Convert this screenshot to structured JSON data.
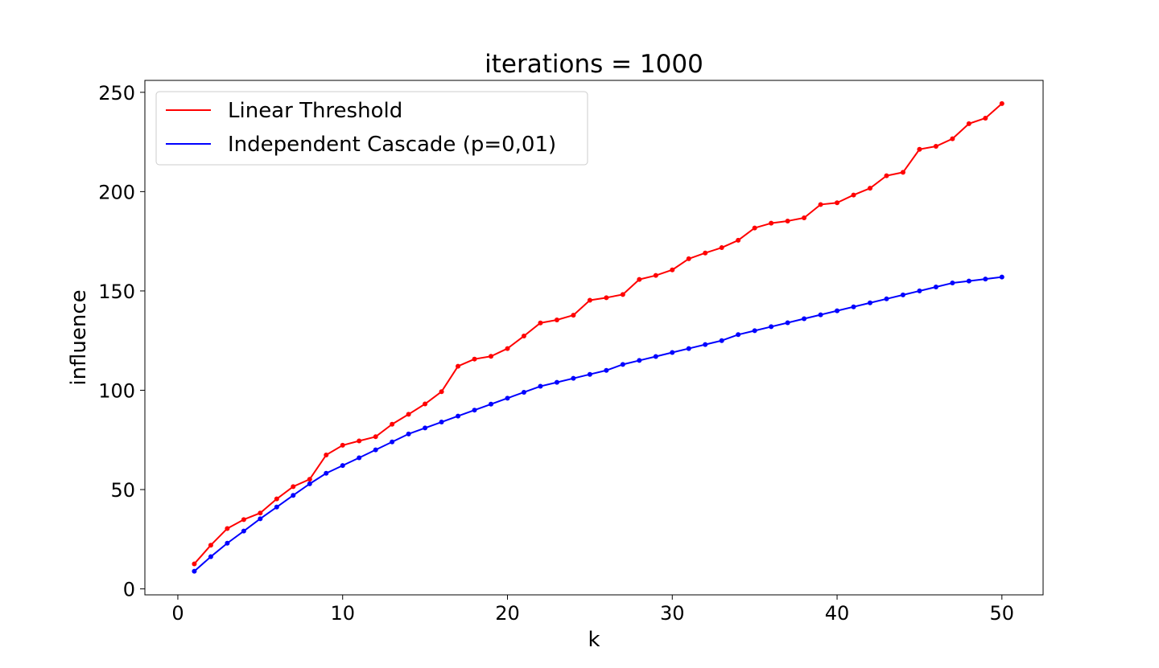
{
  "chart_data": {
    "type": "line",
    "title": "iterations = 1000",
    "xlabel": "k",
    "ylabel": "influence",
    "xlim": [
      -2,
      52.5
    ],
    "ylim": [
      -3,
      256
    ],
    "xticks": [
      0,
      10,
      20,
      30,
      40,
      50
    ],
    "yticks": [
      0,
      50,
      100,
      150,
      200,
      250
    ],
    "grid": false,
    "legend_position": "top-left",
    "x": [
      1,
      2,
      3,
      4,
      5,
      6,
      7,
      8,
      9,
      10,
      11,
      12,
      13,
      14,
      15,
      16,
      17,
      18,
      19,
      20,
      21,
      22,
      23,
      24,
      25,
      26,
      27,
      28,
      29,
      30,
      31,
      32,
      33,
      34,
      35,
      36,
      37,
      38,
      39,
      40,
      41,
      42,
      43,
      44,
      45,
      46,
      47,
      48,
      49,
      50
    ],
    "series": [
      {
        "name": "Linear Threshold",
        "color": "#ff0000",
        "values": [
          12.6,
          22,
          30.4,
          34.9,
          38.2,
          45.3,
          51.5,
          55.2,
          67.4,
          72.3,
          74.5,
          76.6,
          82.9,
          87.9,
          93.1,
          99.3,
          112.1,
          115.7,
          117.1,
          121,
          127.3,
          133.9,
          135.4,
          137.8,
          145.3,
          146.6,
          148.2,
          155.8,
          157.8,
          160.6,
          166.2,
          169.1,
          171.8,
          175.5,
          181.7,
          184.1,
          185.2,
          186.8,
          193.5,
          194.4,
          198.3,
          201.7,
          208,
          209.7,
          221.3,
          222.8,
          226.6,
          234.2,
          237,
          244.3
        ]
      },
      {
        "name": "Independent Cascade (p=0,01)",
        "color": "#0000ff",
        "values": [
          8.9,
          16.2,
          23,
          29.1,
          35.3,
          41.2,
          47.1,
          52.9,
          58.2,
          62.1,
          66,
          70,
          74,
          78,
          81,
          84,
          87,
          90,
          93,
          96,
          99,
          102,
          104,
          106,
          108,
          110,
          113,
          115,
          117,
          119,
          121,
          123,
          125,
          128,
          130,
          132,
          134,
          136,
          138,
          140,
          142,
          144,
          146,
          148,
          150,
          152,
          154,
          155,
          156,
          157
        ]
      }
    ]
  }
}
